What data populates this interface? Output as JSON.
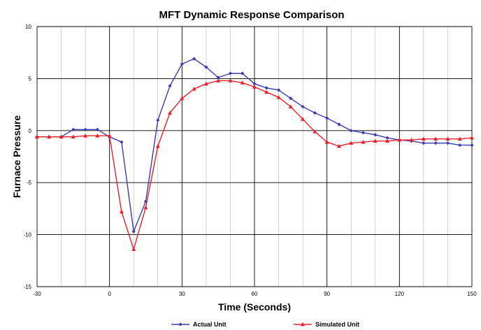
{
  "chart_data": {
    "type": "line",
    "title": "MFT Dynamic Response Comparison",
    "xlabel": "Time (Seconds)",
    "ylabel": "Furnace Pressure",
    "xlim": [
      -30,
      150
    ],
    "ylim": [
      -15,
      10
    ],
    "xticks": [
      -30,
      0,
      30,
      60,
      90,
      120,
      150
    ],
    "yticks": [
      10,
      5,
      0,
      -5,
      -10,
      -15
    ],
    "grid": true,
    "legend_position": "bottom",
    "colors": {
      "actual": "#3a3ab4",
      "simulated": "#e8202a",
      "grid": "#000000",
      "minor_grid": "#b4b4b4"
    },
    "series": [
      {
        "name": "Actual Unit",
        "marker": "diamond",
        "x": [
          -30,
          -25,
          -20,
          -15,
          -10,
          -5,
          0,
          5,
          10,
          15,
          20,
          25,
          30,
          35,
          40,
          45,
          50,
          55,
          60,
          65,
          70,
          75,
          80,
          85,
          90,
          95,
          100,
          105,
          110,
          115,
          120,
          125,
          130,
          135,
          140,
          145,
          150
        ],
        "y": [
          -0.6,
          -0.6,
          -0.6,
          0.1,
          0.1,
          0.1,
          -0.6,
          -1.1,
          -9.7,
          -6.8,
          1.0,
          4.3,
          6.4,
          6.9,
          6.1,
          5.1,
          5.5,
          5.5,
          4.5,
          4.1,
          3.9,
          3.1,
          2.3,
          1.7,
          1.2,
          0.6,
          0.0,
          -0.2,
          -0.4,
          -0.7,
          -0.9,
          -1.0,
          -1.2,
          -1.2,
          -1.2,
          -1.4,
          -1.4
        ]
      },
      {
        "name": "Simulated Unit",
        "marker": "triangle",
        "x": [
          -30,
          -25,
          -20,
          -15,
          -10,
          -5,
          0,
          5,
          10,
          15,
          20,
          25,
          30,
          35,
          40,
          45,
          50,
          55,
          60,
          65,
          70,
          75,
          80,
          85,
          90,
          95,
          100,
          105,
          110,
          115,
          120,
          125,
          130,
          135,
          140,
          145,
          150
        ],
        "y": [
          -0.6,
          -0.6,
          -0.6,
          -0.6,
          -0.5,
          -0.5,
          -0.5,
          -7.8,
          -11.4,
          -7.4,
          -1.5,
          1.7,
          3.1,
          4.0,
          4.5,
          4.8,
          4.8,
          4.6,
          4.2,
          3.7,
          3.2,
          2.3,
          1.1,
          -0.1,
          -1.1,
          -1.5,
          -1.2,
          -1.1,
          -1.0,
          -1.0,
          -0.9,
          -0.9,
          -0.8,
          -0.8,
          -0.8,
          -0.8,
          -0.7
        ]
      }
    ]
  }
}
